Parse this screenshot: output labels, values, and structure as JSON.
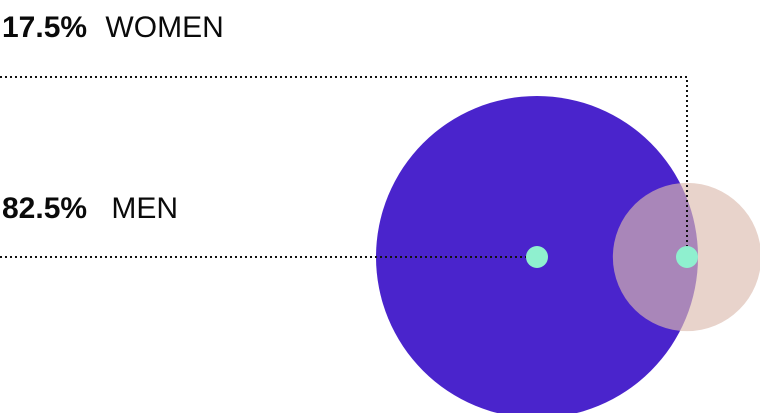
{
  "chart_data": {
    "type": "bubble",
    "series": [
      {
        "name": "WOMEN",
        "value": 17.5,
        "value_label": "17.5%",
        "color": "#dcbcaf",
        "opacity": 0.65
      },
      {
        "name": "MEN",
        "value": 82.5,
        "value_label": "82.5%",
        "color": "#4a24cc",
        "opacity": 1
      }
    ],
    "marker_color": "#8ff0cf",
    "leader_line": "dotted",
    "legend": "left"
  }
}
